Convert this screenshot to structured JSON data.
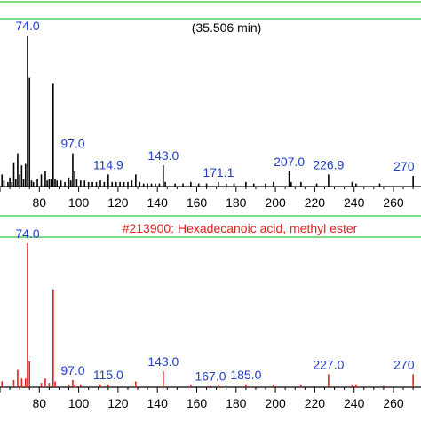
{
  "chart_data": [
    {
      "type": "bar",
      "title": "(35.506 min)",
      "xlabel": "",
      "ylabel": "",
      "xlim": [
        60,
        274
      ],
      "ylim": [
        0,
        100
      ],
      "xticks": [
        80,
        100,
        120,
        140,
        160,
        180,
        200,
        220,
        240,
        260
      ],
      "grid": false,
      "bar_color": "#000000",
      "peaks": [
        {
          "x": 55,
          "y": 3
        },
        {
          "x": 57,
          "y": 6
        },
        {
          "x": 59,
          "y": 14
        },
        {
          "x": 61,
          "y": 8
        },
        {
          "x": 62,
          "y": 4
        },
        {
          "x": 64,
          "y": 3
        },
        {
          "x": 65,
          "y": 6
        },
        {
          "x": 66,
          "y": 3
        },
        {
          "x": 67,
          "y": 16
        },
        {
          "x": 68,
          "y": 5
        },
        {
          "x": 69,
          "y": 22
        },
        {
          "x": 70,
          "y": 8
        },
        {
          "x": 71,
          "y": 14
        },
        {
          "x": 72,
          "y": 5
        },
        {
          "x": 73,
          "y": 15
        },
        {
          "x": 74,
          "y": 100,
          "label": "74.0"
        },
        {
          "x": 75,
          "y": 72
        },
        {
          "x": 76,
          "y": 4
        },
        {
          "x": 77,
          "y": 3
        },
        {
          "x": 79,
          "y": 5
        },
        {
          "x": 81,
          "y": 8
        },
        {
          "x": 83,
          "y": 10
        },
        {
          "x": 84,
          "y": 4
        },
        {
          "x": 85,
          "y": 5
        },
        {
          "x": 86,
          "y": 5
        },
        {
          "x": 87,
          "y": 68
        },
        {
          "x": 88,
          "y": 5
        },
        {
          "x": 89,
          "y": 4
        },
        {
          "x": 91,
          "y": 4
        },
        {
          "x": 93,
          "y": 3
        },
        {
          "x": 95,
          "y": 6
        },
        {
          "x": 96,
          "y": 4
        },
        {
          "x": 97,
          "y": 22,
          "label": "97.0"
        },
        {
          "x": 98,
          "y": 10
        },
        {
          "x": 99,
          "y": 5
        },
        {
          "x": 101,
          "y": 4
        },
        {
          "x": 103,
          "y": 4
        },
        {
          "x": 105,
          "y": 3
        },
        {
          "x": 107,
          "y": 3
        },
        {
          "x": 109,
          "y": 3
        },
        {
          "x": 111,
          "y": 4
        },
        {
          "x": 113,
          "y": 3
        },
        {
          "x": 115,
          "y": 8,
          "label": "114.9"
        },
        {
          "x": 117,
          "y": 3
        },
        {
          "x": 119,
          "y": 3
        },
        {
          "x": 121,
          "y": 3
        },
        {
          "x": 123,
          "y": 3
        },
        {
          "x": 125,
          "y": 3
        },
        {
          "x": 127,
          "y": 4
        },
        {
          "x": 129,
          "y": 8
        },
        {
          "x": 131,
          "y": 3
        },
        {
          "x": 133,
          "y": 2
        },
        {
          "x": 135,
          "y": 2
        },
        {
          "x": 137,
          "y": 2
        },
        {
          "x": 139,
          "y": 2
        },
        {
          "x": 141,
          "y": 2
        },
        {
          "x": 143,
          "y": 14,
          "label": "143.0"
        },
        {
          "x": 144,
          "y": 3
        },
        {
          "x": 149,
          "y": 2
        },
        {
          "x": 153,
          "y": 2
        },
        {
          "x": 157,
          "y": 3
        },
        {
          "x": 161,
          "y": 2
        },
        {
          "x": 165,
          "y": 2
        },
        {
          "x": 171,
          "y": 3,
          "label": "171.1"
        },
        {
          "x": 175,
          "y": 2
        },
        {
          "x": 179,
          "y": 2
        },
        {
          "x": 185,
          "y": 3
        },
        {
          "x": 189,
          "y": 2
        },
        {
          "x": 195,
          "y": 2
        },
        {
          "x": 199,
          "y": 3
        },
        {
          "x": 207,
          "y": 10,
          "label": "207.0"
        },
        {
          "x": 208,
          "y": 3
        },
        {
          "x": 213,
          "y": 3
        },
        {
          "x": 221,
          "y": 2
        },
        {
          "x": 227,
          "y": 8,
          "label": "226.9"
        },
        {
          "x": 239,
          "y": 3
        },
        {
          "x": 241,
          "y": 2
        },
        {
          "x": 253,
          "y": 2
        },
        {
          "x": 270,
          "y": 7,
          "label": "270"
        }
      ]
    },
    {
      "type": "bar",
      "title": "#213900: Hexadecanoic acid, methyl ester",
      "xlabel": "",
      "ylabel": "",
      "xlim": [
        60,
        274
      ],
      "ylim": [
        0,
        100
      ],
      "xticks": [
        80,
        100,
        120,
        140,
        160,
        180,
        200,
        220,
        240,
        260
      ],
      "grid": false,
      "bar_color": "#e02020",
      "peaks": [
        {
          "x": 57,
          "y": 5
        },
        {
          "x": 59,
          "y": 8
        },
        {
          "x": 61,
          "y": 4
        },
        {
          "x": 67,
          "y": 5
        },
        {
          "x": 69,
          "y": 12
        },
        {
          "x": 71,
          "y": 6
        },
        {
          "x": 73,
          "y": 6
        },
        {
          "x": 74,
          "y": 100,
          "label": "74.0"
        },
        {
          "x": 75,
          "y": 18
        },
        {
          "x": 81,
          "y": 3
        },
        {
          "x": 83,
          "y": 6
        },
        {
          "x": 85,
          "y": 3
        },
        {
          "x": 87,
          "y": 68
        },
        {
          "x": 88,
          "y": 4
        },
        {
          "x": 95,
          "y": 2
        },
        {
          "x": 97,
          "y": 5,
          "label": "97.0"
        },
        {
          "x": 98,
          "y": 2
        },
        {
          "x": 101,
          "y": 2
        },
        {
          "x": 111,
          "y": 2
        },
        {
          "x": 115,
          "y": 2,
          "label": "115.0"
        },
        {
          "x": 129,
          "y": 4
        },
        {
          "x": 143,
          "y": 11,
          "label": "143.0"
        },
        {
          "x": 157,
          "y": 2
        },
        {
          "x": 167,
          "y": 1,
          "label": "167.0"
        },
        {
          "x": 171,
          "y": 2
        },
        {
          "x": 185,
          "y": 2,
          "label": "185.0"
        },
        {
          "x": 199,
          "y": 2
        },
        {
          "x": 213,
          "y": 2
        },
        {
          "x": 227,
          "y": 9,
          "label": "227.0"
        },
        {
          "x": 239,
          "y": 2
        },
        {
          "x": 241,
          "y": 2
        },
        {
          "x": 255,
          "y": 1
        },
        {
          "x": 270,
          "y": 9,
          "label": "270"
        }
      ]
    }
  ]
}
